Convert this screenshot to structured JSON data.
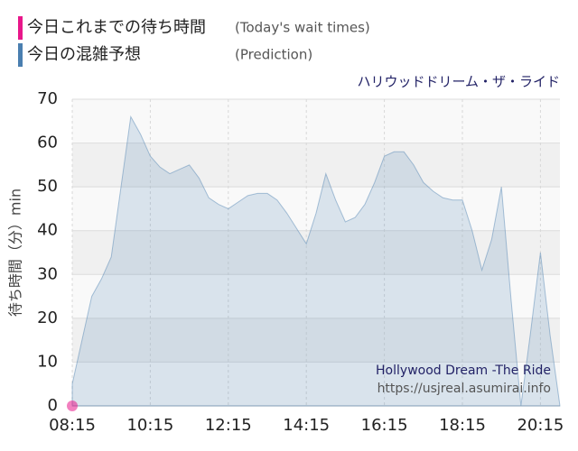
{
  "chart_data": {
    "type": "area",
    "subtitle": "ハリウッドドリーム・ザ・ライド",
    "y_label": "待ち時間（分）min",
    "watermark": [
      "Hollywood Dream -The Ride",
      "https://usjreal.asumirai.info"
    ],
    "categories": [
      "08:15",
      null,
      null,
      null,
      null,
      null,
      null,
      null,
      "10:15",
      null,
      null,
      null,
      null,
      null,
      null,
      null,
      "12:15",
      null,
      null,
      null,
      null,
      null,
      null,
      null,
      "14:15",
      null,
      null,
      null,
      null,
      null,
      null,
      null,
      "16:15",
      null,
      null,
      null,
      null,
      null,
      null,
      null,
      "18:15",
      null,
      null,
      null,
      null,
      null,
      null,
      null,
      "20:15",
      null,
      null
    ],
    "series": [
      {
        "name": "今日これまでの待ち時間",
        "note": "(Today's wait times)",
        "color": "#e8178a",
        "values": [
          0,
          null,
          null,
          null,
          null,
          null,
          null,
          null,
          null,
          null,
          null,
          null,
          null,
          null,
          null,
          null,
          null,
          null,
          null,
          null,
          null,
          null,
          null,
          null,
          null,
          null,
          null,
          null,
          null,
          null,
          null,
          null,
          null,
          null,
          null,
          null,
          null,
          null,
          null,
          null,
          null,
          null,
          null,
          null,
          null,
          null,
          null,
          null,
          null,
          null,
          null
        ]
      },
      {
        "name": "今日の混雑予想",
        "note": "(Prediction)",
        "color": "#4a7fb0",
        "values": [
          5,
          15,
          25,
          29,
          34,
          50,
          66,
          62,
          57,
          54.5,
          53,
          54,
          55,
          52,
          47.5,
          46,
          45,
          46.5,
          48,
          48.5,
          48.5,
          47,
          44,
          40.5,
          37,
          44,
          53,
          47,
          42,
          43,
          46,
          51,
          57,
          58,
          58,
          55,
          51,
          49,
          47.5,
          47,
          47,
          40,
          31,
          38,
          50,
          24,
          0,
          17,
          35,
          16,
          0
        ]
      }
    ],
    "ylim": [
      0,
      70
    ],
    "yticks": [
      0,
      10,
      20,
      30,
      40,
      50,
      60,
      70
    ],
    "grid": true
  }
}
